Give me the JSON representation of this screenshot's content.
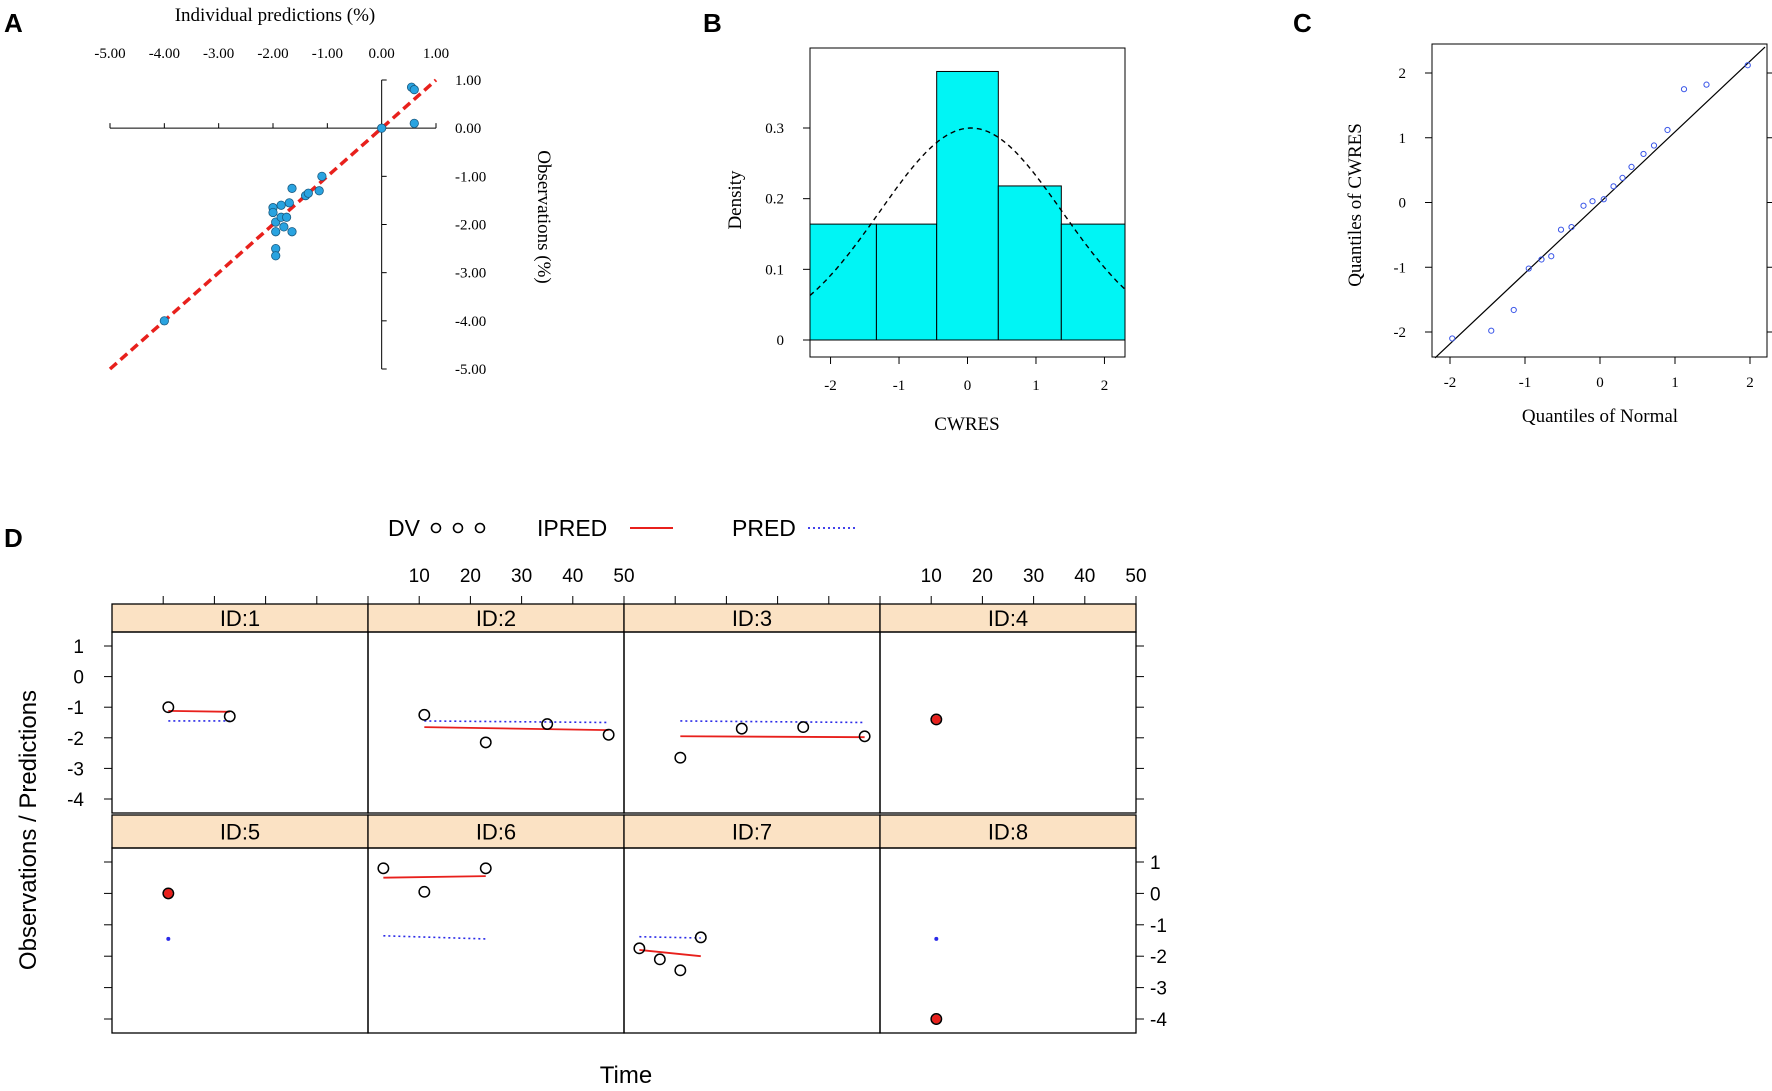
{
  "panel_labels": {
    "A": "A",
    "B": "B",
    "C": "C",
    "D": "D"
  },
  "chart_data": [
    {
      "panel": "A",
      "type": "scatter",
      "xlabel": "Individual predictions (%)",
      "ylabel": "Observations (%)",
      "xlim": [
        -5,
        1
      ],
      "ylim": [
        -5,
        1
      ],
      "xticks": [
        "-5.00",
        "-4.00",
        "-3.00",
        "-2.00",
        "-1.00",
        "0.00",
        "1.00"
      ],
      "yticks": [
        "1.00",
        "0.00",
        "-1.00",
        "-2.00",
        "-3.00",
        "-4.00",
        "-5.00"
      ],
      "identity_line": {
        "from": [
          -5,
          -5
        ],
        "to": [
          1,
          1
        ],
        "color": "#e8201c",
        "style": "dashed"
      },
      "point_color": "#29a3e0",
      "points": [
        [
          -4.0,
          -4.0
        ],
        [
          -2.0,
          -1.65
        ],
        [
          -2.0,
          -1.75
        ],
        [
          -1.95,
          -1.95
        ],
        [
          -1.95,
          -2.15
        ],
        [
          -1.95,
          -2.5
        ],
        [
          -1.95,
          -2.65
        ],
        [
          -1.85,
          -1.6
        ],
        [
          -1.85,
          -1.85
        ],
        [
          -1.8,
          -2.05
        ],
        [
          -1.75,
          -1.85
        ],
        [
          -1.7,
          -1.55
        ],
        [
          -1.65,
          -2.15
        ],
        [
          -1.65,
          -1.25
        ],
        [
          -1.4,
          -1.4
        ],
        [
          -1.35,
          -1.35
        ],
        [
          -1.15,
          -1.3
        ],
        [
          -1.1,
          -1.0
        ],
        [
          0.0,
          0.0
        ],
        [
          0.55,
          0.85
        ],
        [
          0.6,
          0.8
        ],
        [
          0.6,
          0.1
        ]
      ]
    },
    {
      "panel": "B",
      "type": "bar",
      "xlabel": "CWRES",
      "ylabel": "Density",
      "xlim": [
        -2.3,
        2.3
      ],
      "ylim": [
        -0.02,
        0.39
      ],
      "xticks": [
        "-2",
        "-1",
        "0",
        "1",
        "2"
      ],
      "yticks": [
        "0",
        "0.1",
        "0.2",
        "0.3"
      ],
      "bar_color": "#00f5f5",
      "bins": [
        {
          "from": -2.3,
          "to": -1.33,
          "density": 0.164
        },
        {
          "from": -1.33,
          "to": -0.45,
          "density": 0.164
        },
        {
          "from": -0.45,
          "to": 0.45,
          "density": 0.38
        },
        {
          "from": 0.45,
          "to": 1.37,
          "density": 0.218
        },
        {
          "from": 1.37,
          "to": 2.3,
          "density": 0.164
        }
      ],
      "density_curve": {
        "style": "dashed",
        "mean": 0.05,
        "sd": 1.33
      }
    },
    {
      "panel": "C",
      "type": "scatter",
      "xlabel": "Quantiles of Normal",
      "ylabel": "Quantiles of CWRES",
      "xlim": [
        -2.2,
        2.2
      ],
      "ylim": [
        -2.4,
        2.4
      ],
      "xticks": [
        "-2",
        "-1",
        "0",
        "1",
        "2"
      ],
      "yticks": [
        "2",
        "1",
        "0",
        "-1",
        "-2"
      ],
      "reference_line": {
        "from": [
          -2.2,
          -2.4
        ],
        "to": [
          2.2,
          2.4
        ]
      },
      "point_color": "#3a56e8",
      "points": [
        [
          -1.97,
          -2.1
        ],
        [
          -1.45,
          -1.98
        ],
        [
          -1.15,
          -1.66
        ],
        [
          -0.95,
          -1.02
        ],
        [
          -0.78,
          -0.88
        ],
        [
          -0.65,
          -0.83
        ],
        [
          -0.52,
          -0.42
        ],
        [
          -0.38,
          -0.38
        ],
        [
          -0.22,
          -0.05
        ],
        [
          -0.1,
          0.02
        ],
        [
          0.05,
          0.05
        ],
        [
          0.18,
          0.25
        ],
        [
          0.3,
          0.38
        ],
        [
          0.42,
          0.55
        ],
        [
          0.58,
          0.75
        ],
        [
          0.72,
          0.88
        ],
        [
          0.9,
          1.12
        ],
        [
          1.12,
          1.75
        ],
        [
          1.42,
          1.82
        ],
        [
          1.97,
          2.12
        ]
      ]
    },
    {
      "panel": "D",
      "type": "line",
      "xlabel": "Time",
      "ylabel": "Observations / Predictions",
      "xlim": [
        0,
        50
      ],
      "ylim": [
        -4.4,
        1.4
      ],
      "xticks": [
        "10",
        "20",
        "30",
        "40",
        "50"
      ],
      "yticks": [
        "1",
        "0",
        "-1",
        "-2",
        "-3",
        "-4"
      ],
      "legend": {
        "position": "top",
        "entries": [
          {
            "label": "DV",
            "symbol": "circles",
            "color": "#000000"
          },
          {
            "label": "IPRED",
            "symbol": "solid-line",
            "color": "#e8201c"
          },
          {
            "label": "PRED",
            "symbol": "dotted-line",
            "color": "#2a2ae8"
          }
        ]
      },
      "strip_color": "#fbe2c4",
      "panels": [
        {
          "label": "ID:1",
          "dv": [
            [
              11,
              -1.0
            ],
            [
              23,
              -1.3
            ]
          ],
          "ipred": [
            [
              11,
              -1.12
            ],
            [
              23,
              -1.15
            ]
          ],
          "pred": [
            [
              11,
              -1.45
            ],
            [
              23,
              -1.45
            ]
          ]
        },
        {
          "label": "ID:2",
          "dv": [
            [
              11,
              -1.25
            ],
            [
              23,
              -2.15
            ],
            [
              35,
              -1.55
            ],
            [
              47,
              -1.9
            ]
          ],
          "ipred": [
            [
              11,
              -1.65
            ],
            [
              47,
              -1.75
            ]
          ],
          "pred": [
            [
              11,
              -1.45
            ],
            [
              47,
              -1.5
            ]
          ]
        },
        {
          "label": "ID:3",
          "dv": [
            [
              11,
              -2.65
            ],
            [
              23,
              -1.7
            ],
            [
              35,
              -1.65
            ],
            [
              47,
              -1.95
            ]
          ],
          "ipred": [
            [
              11,
              -1.95
            ],
            [
              47,
              -1.98
            ]
          ],
          "pred": [
            [
              11,
              -1.45
            ],
            [
              47,
              -1.5
            ]
          ]
        },
        {
          "label": "ID:4",
          "dv": [
            [
              11,
              -1.4
            ]
          ],
          "ipred": [
            [
              11,
              -1.4
            ]
          ],
          "pred": [
            [
              11,
              -1.4
            ]
          ]
        },
        {
          "label": "ID:5",
          "dv": [
            [
              11,
              0.0
            ]
          ],
          "ipred": [
            [
              11,
              0.0
            ]
          ],
          "pred": [
            [
              11,
              -1.45
            ]
          ]
        },
        {
          "label": "ID:6",
          "dv": [
            [
              3,
              0.8
            ],
            [
              11,
              0.05
            ],
            [
              23,
              0.8
            ]
          ],
          "ipred": [
            [
              3,
              0.5
            ],
            [
              23,
              0.55
            ]
          ],
          "pred": [
            [
              3,
              -1.35
            ],
            [
              23,
              -1.45
            ]
          ]
        },
        {
          "label": "ID:7",
          "dv": [
            [
              3,
              -1.75
            ],
            [
              7,
              -2.1
            ],
            [
              11,
              -2.45
            ],
            [
              15,
              -1.4
            ]
          ],
          "ipred": [
            [
              3,
              -1.8
            ],
            [
              15,
              -2.0
            ]
          ],
          "pred": [
            [
              3,
              -1.38
            ],
            [
              15,
              -1.42
            ]
          ]
        },
        {
          "label": "ID:8",
          "dv": [
            [
              11,
              -4.0
            ]
          ],
          "ipred": [
            [
              11,
              -4.0
            ]
          ],
          "pred": [
            [
              11,
              -1.45
            ]
          ]
        }
      ]
    }
  ]
}
